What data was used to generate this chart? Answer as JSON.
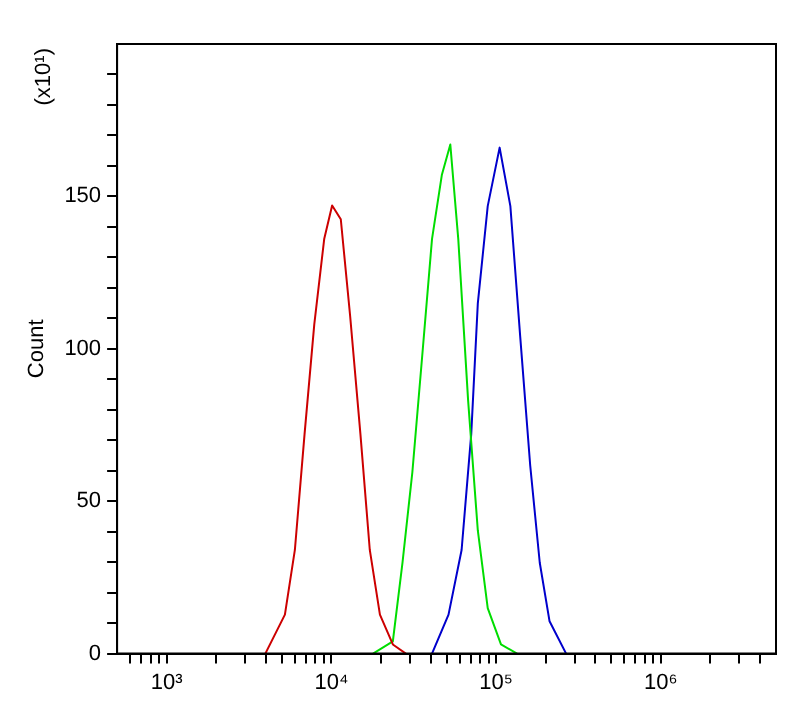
{
  "chart_data": {
    "type": "line",
    "ylabel": "Count",
    "annotations": [
      "(x10¹)"
    ],
    "log": "x",
    "grid": false,
    "legend": false,
    "marker": "none",
    "line_style": "solid",
    "xlim": [
      500,
      5000000
    ],
    "xticks": [
      {
        "value": 600,
        "label": null
      },
      {
        "value": 700,
        "label": null
      },
      {
        "value": 800,
        "label": null
      },
      {
        "value": 900,
        "label": null
      },
      {
        "value": 1000,
        "label": "10³"
      },
      {
        "value": 2000,
        "label": null
      },
      {
        "value": 3000,
        "label": null
      },
      {
        "value": 4000,
        "label": null
      },
      {
        "value": 5000,
        "label": null
      },
      {
        "value": 6000,
        "label": null
      },
      {
        "value": 7000,
        "label": null
      },
      {
        "value": 8000,
        "label": null
      },
      {
        "value": 9000,
        "label": null
      },
      {
        "value": 10000,
        "label": "10⁴"
      },
      {
        "value": 20000,
        "label": null
      },
      {
        "value": 30000,
        "label": null
      },
      {
        "value": 40000,
        "label": null
      },
      {
        "value": 50000,
        "label": null
      },
      {
        "value": 60000,
        "label": null
      },
      {
        "value": 70000,
        "label": null
      },
      {
        "value": 80000,
        "label": null
      },
      {
        "value": 90000,
        "label": null
      },
      {
        "value": 100000,
        "label": "10⁵"
      },
      {
        "value": 200000,
        "label": null
      },
      {
        "value": 300000,
        "label": null
      },
      {
        "value": 400000,
        "label": null
      },
      {
        "value": 500000,
        "label": null
      },
      {
        "value": 600000,
        "label": null
      },
      {
        "value": 700000,
        "label": null
      },
      {
        "value": 800000,
        "label": null
      },
      {
        "value": 900000,
        "label": null
      },
      {
        "value": 1000000,
        "label": "10⁶"
      },
      {
        "value": 2000000,
        "label": null
      },
      {
        "value": 3000000,
        "label": null
      },
      {
        "value": 4000000,
        "label": null
      }
    ],
    "ylim": [
      0,
      200
    ],
    "yticks": [
      0,
      {
        "value": 10,
        "label": null
      },
      {
        "value": 20,
        "label": null
      },
      {
        "value": 30,
        "label": null
      },
      {
        "value": 40,
        "label": null
      },
      50,
      {
        "value": 60,
        "label": null
      },
      {
        "value": 70,
        "label": null
      },
      {
        "value": 80,
        "label": null
      },
      {
        "value": 90,
        "label": null
      },
      100,
      {
        "value": 110,
        "label": null
      },
      {
        "value": 120,
        "label": null
      },
      {
        "value": 130,
        "label": null
      },
      {
        "value": 140,
        "label": null
      },
      150,
      {
        "value": 160,
        "label": null
      },
      {
        "value": 170,
        "label": null
      },
      {
        "value": 180,
        "label": null
      },
      {
        "value": 190,
        "label": null
      }
    ],
    "series": [
      {
        "color": "#cc0000",
        "x": [
          3970,
          5220,
          6000,
          6870,
          7870,
          9040,
          10100,
          11400,
          13000,
          15000,
          17100,
          19700,
          23600,
          28300
        ],
        "values": [
          0,
          12.8,
          34,
          72,
          108,
          136,
          147,
          142.5,
          110.6,
          72,
          34,
          12.8,
          3,
          0
        ]
      },
      {
        "color": "#00dd00",
        "x": [
          17900,
          23600,
          27000,
          31000,
          35600,
          40800,
          46800,
          52700,
          58900,
          67600,
          77400,
          88900,
          107000,
          134000
        ],
        "values": [
          0,
          4,
          29.8,
          59.5,
          97.8,
          136,
          157,
          167,
          136,
          83,
          40.4,
          14.9,
          3,
          0
        ]
      },
      {
        "color": "#0000cc",
        "x": [
          40800,
          51400,
          61700,
          70600,
          77400,
          88900,
          105000,
          122000,
          140000,
          161000,
          184000,
          211000,
          266000
        ],
        "values": [
          0,
          12.8,
          34,
          72,
          114.9,
          146.8,
          166,
          146.8,
          104,
          61.7,
          29.8,
          10.6,
          0
        ]
      }
    ]
  }
}
